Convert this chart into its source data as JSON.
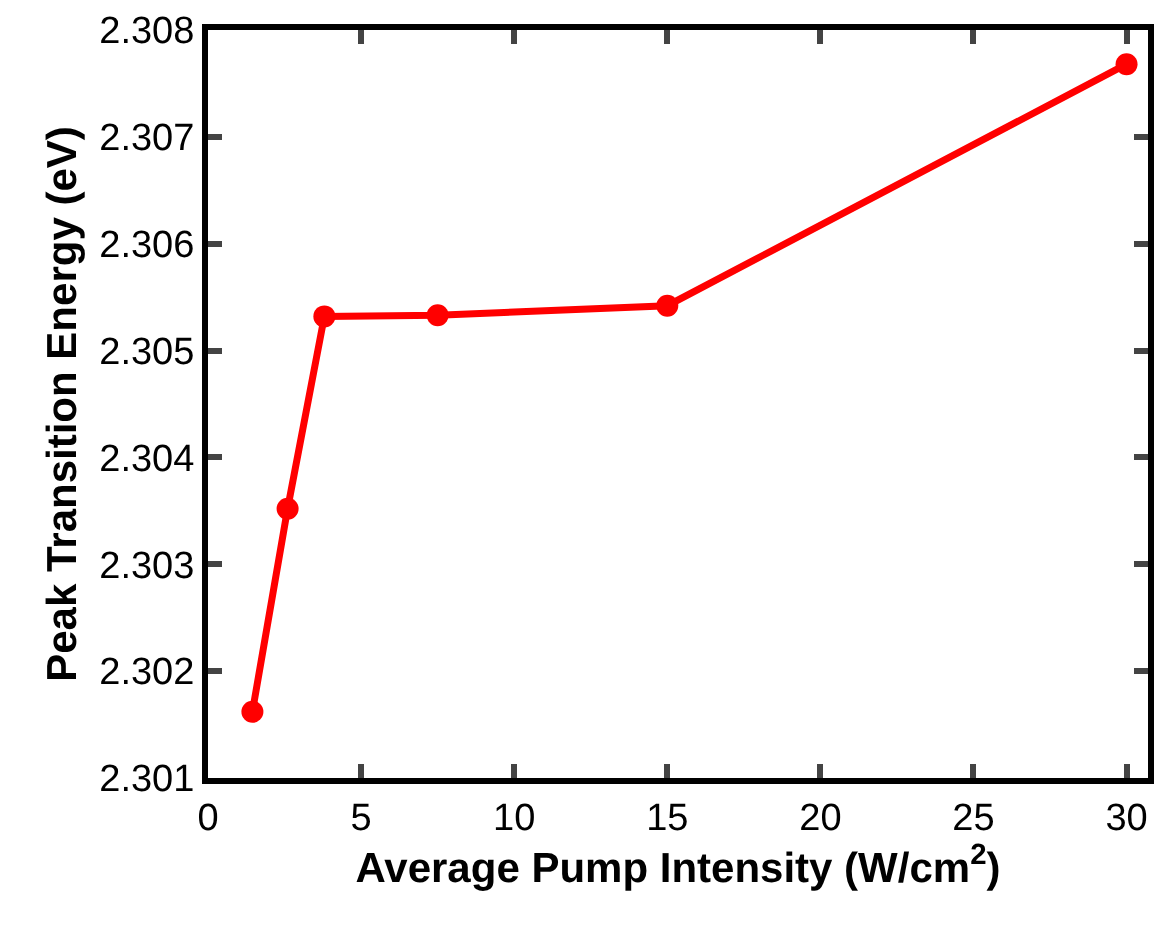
{
  "chart_data": {
    "type": "line",
    "xlabel": "Average Pump Intensity (W/cm$^{2}$)",
    "ylabel": "Peak Transition Energy (eV)",
    "x": [
      1.45,
      2.6,
      3.8,
      7.5,
      15,
      30
    ],
    "series": [
      {
        "color": "#ff0000",
        "values": [
          2.30162,
          2.30352,
          2.30532,
          2.30533,
          2.30542,
          2.30768
        ]
      }
    ],
    "xlim": [
      0,
      30.7
    ],
    "xticks": [
      0,
      5,
      10,
      15,
      20,
      25,
      30
    ],
    "ylim": [
      2.301,
      2.308
    ],
    "yticks": [
      2.301,
      2.302,
      2.303,
      2.304,
      2.305,
      2.306,
      2.307,
      2.308
    ],
    "marker": "circle",
    "line_style": "solid"
  }
}
